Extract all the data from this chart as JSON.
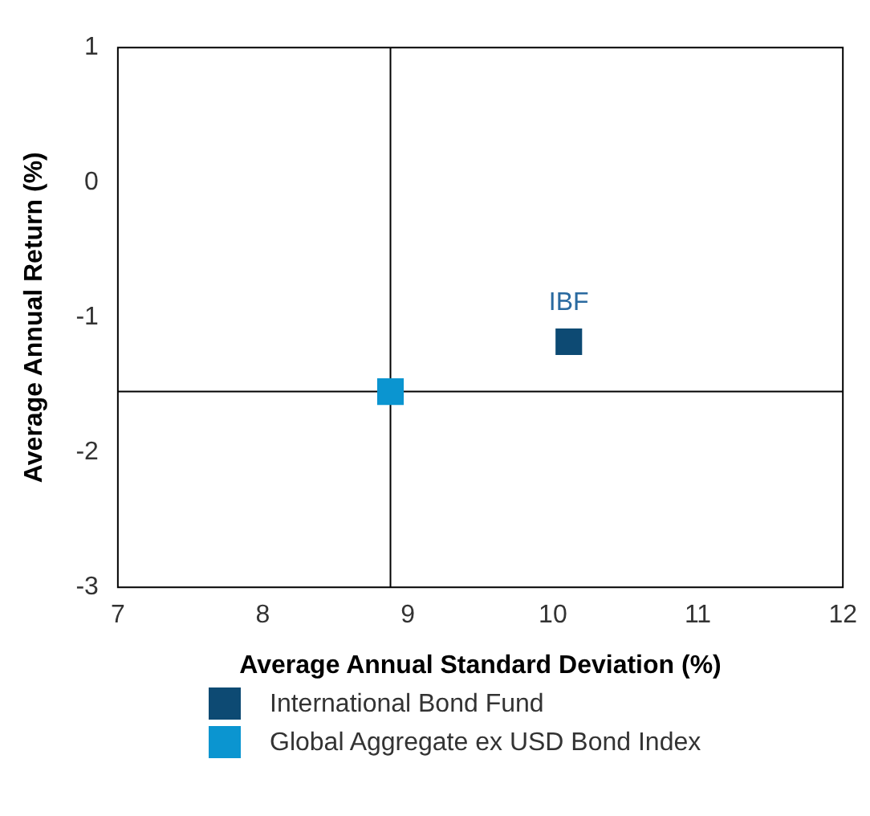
{
  "chart_data": {
    "type": "scatter",
    "xlabel": "Average Annual Standard Deviation (%)",
    "ylabel": "Average Annual Return (%)",
    "xlim": [
      7,
      12
    ],
    "xticks": [
      7,
      8,
      9,
      10,
      11,
      12
    ],
    "ylim": [
      -3,
      1
    ],
    "yticks": [
      -3,
      -2,
      -1,
      0,
      1
    ],
    "series": [
      {
        "name": "International Bond Fund",
        "color": "#0d4a73",
        "x": [
          10.11
        ],
        "values": [
          -1.18
        ]
      },
      {
        "name": "Global Aggregate ex USD Bond Index",
        "color": "#0b95d0",
        "x": [
          8.88
        ],
        "values": [
          -1.55
        ]
      }
    ],
    "ref_lines": [
      {
        "axis": "x",
        "value": 8.88,
        "color": "#000000"
      },
      {
        "axis": "y",
        "value": -1.55,
        "color": "#000000"
      }
    ],
    "annotations": [
      {
        "text": "IBF",
        "x": 10.11,
        "y": -1.18
      }
    ],
    "marker": "square",
    "grid": false,
    "legend": "bottom"
  }
}
